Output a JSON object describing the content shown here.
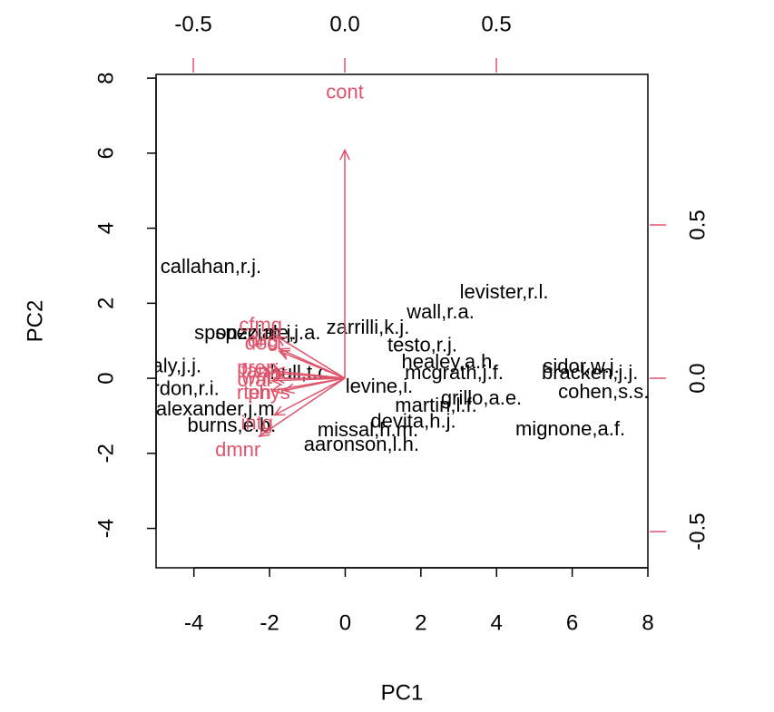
{
  "chart_data": {
    "type": "biplot",
    "xlabel": "PC1",
    "ylabel": "PC2",
    "xlim": [
      -5,
      8
    ],
    "ylim": [
      -5.05,
      8.1
    ],
    "xticks": [
      -4,
      -2,
      0,
      2,
      4,
      6,
      8
    ],
    "yticks": [
      -4,
      -2,
      0,
      2,
      4,
      6,
      8
    ],
    "x2lim": [
      -0.623,
      1.0
    ],
    "y2lim": [
      -0.618,
      0.991
    ],
    "x2ticks": [
      -0.5,
      {
        "value": 0,
        "label": "0.0"
      },
      0.5
    ],
    "y2ticks": [
      -0.5,
      {
        "value": 0,
        "label": "0.0"
      },
      0.5
    ],
    "score_color": "#000000",
    "loading_color": "#DF536B",
    "scores": {
      "labels": [
        "callahan,r.j.",
        "levister,r.l.",
        "wall,r.a.",
        "zarrilli,k.j.",
        "speziale,j.a.",
        "sponzo,m.j.",
        "testo,r.j.",
        "healey,a.h.",
        "mcgrath,j.f.",
        "sidor,w.j.",
        "bracken,j.j.",
        "cohen,s.s.",
        "hull,t.c.",
        "grillo,a.e.",
        "martin,l.f.",
        "mignone,a.f.",
        "devita,h.j.",
        "missal,h.m.",
        "aaronson,l.h.",
        "burns,e.b.",
        "alexander,j.m.",
        "berdon,r.i.",
        "daly,j.j.",
        "levine,i."
      ],
      "x": [
        -3.55,
        4.2,
        2.52,
        0.6,
        -2.04,
        -2.64,
        2.04,
        2.76,
        2.88,
        6.24,
        6.47,
        6.83,
        -1.15,
        3.6,
        2.4,
        5.95,
        1.8,
        0.6,
        0.43,
        -3.0,
        -3.36,
        -4.5,
        -4.6,
        0.9
      ],
      "y": [
        2.95,
        2.27,
        1.74,
        1.33,
        1.18,
        1.18,
        0.85,
        0.41,
        0.12,
        0.29,
        0.12,
        -0.39,
        0.12,
        -0.56,
        -0.75,
        -1.38,
        -1.18,
        -1.4,
        -1.79,
        -1.28,
        -0.85,
        -0.3,
        0.3,
        -0.25
      ]
    },
    "loadings": {
      "labels": [
        "cont",
        "intg",
        "dmnr",
        "dilg",
        "cfmg",
        "deci",
        "prep",
        "fami",
        "oral",
        "writ",
        "phys",
        "rten"
      ],
      "x": [
        0.0,
        -0.29,
        -0.353,
        -0.27,
        -0.278,
        -0.27,
        -0.29,
        -0.28,
        -0.3,
        -0.29,
        -0.25,
        -0.3
      ],
      "y": [
        0.93,
        -0.15,
        -0.237,
        0.12,
        0.169,
        0.11,
        0.03,
        0.02,
        -0.01,
        0.0,
        -0.05,
        -0.05
      ]
    }
  }
}
